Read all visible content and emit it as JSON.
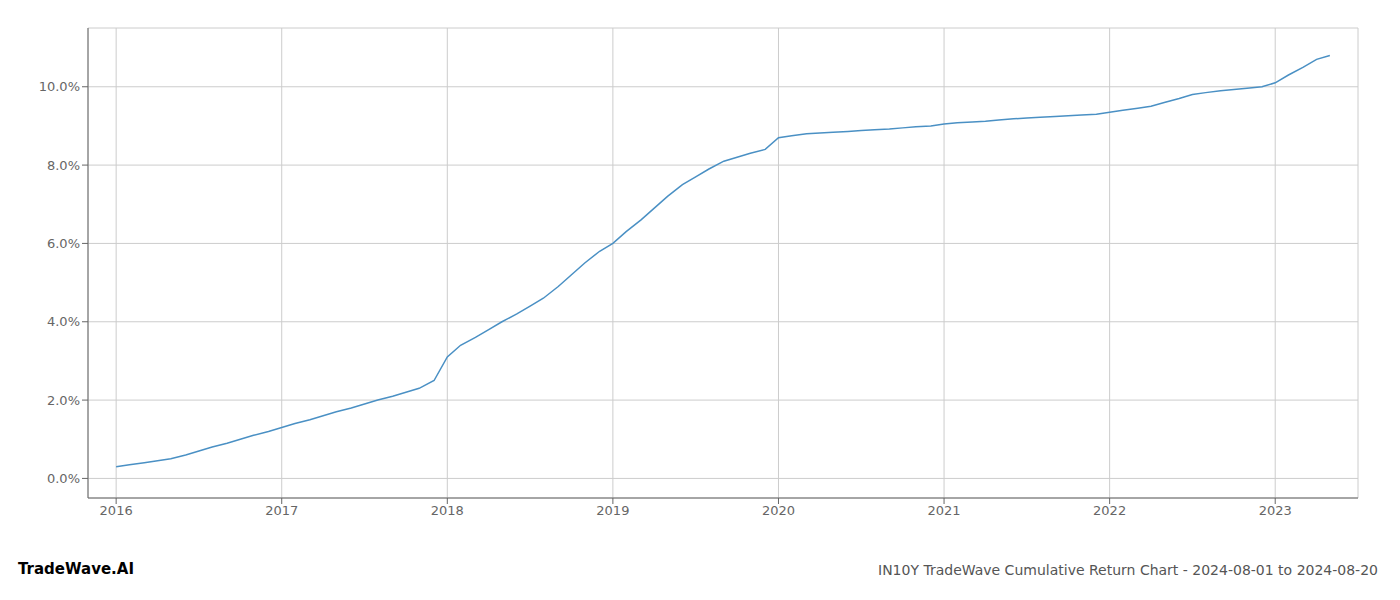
{
  "chart_data": {
    "type": "line",
    "title": "IN10Y TradeWave Cumulative Return Chart - 2024-08-01 to 2024-08-20",
    "annotations": [
      "TradeWave.AI"
    ],
    "color": "#4a90c4",
    "grid": true,
    "x": [
      2016.0,
      2016.08,
      2016.17,
      2016.25,
      2016.33,
      2016.42,
      2016.5,
      2016.58,
      2016.67,
      2016.75,
      2016.83,
      2016.92,
      2017.0,
      2017.08,
      2017.17,
      2017.25,
      2017.33,
      2017.42,
      2017.5,
      2017.58,
      2017.67,
      2017.75,
      2017.83,
      2017.92,
      2018.0,
      2018.08,
      2018.17,
      2018.25,
      2018.33,
      2018.42,
      2018.5,
      2018.58,
      2018.67,
      2018.75,
      2018.83,
      2018.92,
      2019.0,
      2019.08,
      2019.17,
      2019.25,
      2019.33,
      2019.42,
      2019.5,
      2019.58,
      2019.67,
      2019.75,
      2019.83,
      2019.92,
      2020.0,
      2020.08,
      2020.17,
      2020.25,
      2020.33,
      2020.42,
      2020.5,
      2020.58,
      2020.67,
      2020.75,
      2020.83,
      2020.92,
      2021.0,
      2021.08,
      2021.17,
      2021.25,
      2021.33,
      2021.42,
      2021.5,
      2021.58,
      2021.67,
      2021.75,
      2021.83,
      2021.92,
      2022.0,
      2022.08,
      2022.17,
      2022.25,
      2022.33,
      2022.42,
      2022.5,
      2022.58,
      2022.67,
      2022.75,
      2022.83,
      2022.92,
      2023.0,
      2023.08,
      2023.17,
      2023.25,
      2023.33
    ],
    "values": [
      0.003,
      0.0035,
      0.004,
      0.0045,
      0.005,
      0.006,
      0.007,
      0.008,
      0.009,
      0.01,
      0.011,
      0.012,
      0.013,
      0.014,
      0.015,
      0.016,
      0.017,
      0.018,
      0.019,
      0.02,
      0.021,
      0.022,
      0.023,
      0.025,
      0.031,
      0.034,
      0.036,
      0.038,
      0.04,
      0.042,
      0.044,
      0.046,
      0.049,
      0.052,
      0.055,
      0.058,
      0.06,
      0.063,
      0.066,
      0.069,
      0.072,
      0.075,
      0.077,
      0.079,
      0.081,
      0.082,
      0.083,
      0.084,
      0.087,
      0.0875,
      0.088,
      0.0882,
      0.0884,
      0.0886,
      0.0888,
      0.089,
      0.0892,
      0.0895,
      0.0898,
      0.09,
      0.0905,
      0.0908,
      0.091,
      0.0912,
      0.0915,
      0.0918,
      0.092,
      0.0922,
      0.0924,
      0.0926,
      0.0928,
      0.093,
      0.0935,
      0.094,
      0.0945,
      0.095,
      0.096,
      0.097,
      0.098,
      0.0985,
      0.099,
      0.0993,
      0.0996,
      0.1,
      0.101,
      0.103,
      0.105,
      0.107,
      0.108
    ],
    "xlim": [
      2015.83,
      2023.5
    ],
    "ylim": [
      -0.005,
      0.115
    ],
    "xticks": [
      2016,
      2017,
      2018,
      2019,
      2020,
      2021,
      2022,
      2023
    ],
    "yticks": [
      {
        "value": 0.0,
        "label": "0.0%"
      },
      {
        "value": 0.02,
        "label": "2.0%"
      },
      {
        "value": 0.04,
        "label": "4.0%"
      },
      {
        "value": 0.06,
        "label": "6.0%"
      },
      {
        "value": 0.08,
        "label": "8.0%"
      },
      {
        "value": 0.1,
        "label": "10.0%"
      }
    ]
  }
}
